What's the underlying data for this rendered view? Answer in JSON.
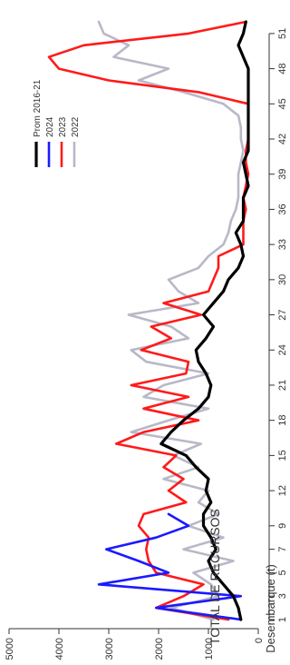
{
  "chart_data": {
    "type": "line",
    "title": "TOTAL DE RECURSOS",
    "xlabel": "",
    "ylabel": "Desembarque (t)",
    "rotation": "chart rotated 90° counter-clockwise",
    "ylim": [
      0,
      5000
    ],
    "yticks": [
      0,
      1000,
      2000,
      3000,
      4000,
      5000
    ],
    "xlim": [
      1,
      52
    ],
    "xticks": [
      1,
      3,
      5,
      7,
      9,
      12,
      15,
      18,
      21,
      24,
      27,
      30,
      33,
      36,
      39,
      42,
      45,
      48,
      51
    ],
    "legend_position": "top-right",
    "grid": false,
    "series": [
      {
        "name": "Prom 2016-21",
        "color": "#000000",
        "x": [
          1,
          2,
          3,
          4,
          5,
          6,
          7,
          8,
          9,
          10,
          11,
          12,
          13,
          14,
          15,
          16,
          17,
          18,
          19,
          20,
          21,
          22,
          23,
          24,
          25,
          26,
          27,
          28,
          29,
          30,
          31,
          32,
          33,
          34,
          35,
          36,
          37,
          38,
          39,
          40,
          41,
          42,
          43,
          44,
          45,
          46,
          47,
          48,
          49,
          50,
          51,
          52
        ],
        "values": [
          350,
          400,
          500,
          700,
          900,
          1000,
          850,
          950,
          1100,
          1100,
          950,
          1050,
          1000,
          1250,
          1450,
          1950,
          1750,
          1500,
          1200,
          1000,
          950,
          1050,
          1200,
          1250,
          1050,
          900,
          1100,
          900,
          700,
          600,
          400,
          300,
          350,
          450,
          300,
          300,
          300,
          200,
          250,
          300,
          200,
          200,
          200,
          200,
          200,
          200,
          200,
          200,
          300,
          400,
          300,
          250
        ]
      },
      {
        "name": "2024",
        "color": "#1a1aff",
        "x": [
          1,
          2,
          3,
          4,
          5,
          6,
          7,
          8,
          9,
          10
        ],
        "values": [
          350,
          2050,
          350,
          3200,
          1800,
          2400,
          3050,
          2050,
          1400,
          1800
        ]
      },
      {
        "name": "2023",
        "color": "#ff1a1a",
        "x": [
          1,
          2,
          3,
          4,
          5,
          6,
          7,
          8,
          9,
          10,
          11,
          12,
          13,
          14,
          15,
          16,
          17,
          18,
          19,
          20,
          21,
          22,
          23,
          24,
          25,
          26,
          27,
          28,
          29,
          30,
          31,
          32,
          33,
          34,
          35,
          36,
          37,
          38,
          39,
          40,
          41,
          42,
          43,
          44,
          45,
          46,
          47,
          48,
          49,
          50,
          51,
          52
        ],
        "values": [
          600,
          2050,
          1500,
          1100,
          2050,
          2200,
          2250,
          2200,
          2400,
          2300,
          1450,
          1800,
          1500,
          1900,
          1650,
          2850,
          2300,
          1200,
          2300,
          1400,
          2550,
          1450,
          1400,
          2350,
          1750,
          2150,
          1150,
          1900,
          1000,
          900,
          800,
          800,
          300,
          300,
          300,
          250,
          300,
          250,
          200,
          250,
          250,
          200,
          200,
          200,
          200,
          1200,
          3000,
          4000,
          4200,
          3500,
          1400,
          250
        ]
      },
      {
        "name": "2022",
        "color": "#b8b8c8",
        "x": [
          1,
          2,
          3,
          4,
          5,
          6,
          7,
          8,
          9,
          10,
          11,
          12,
          13,
          14,
          15,
          16,
          17,
          18,
          19,
          20,
          21,
          22,
          23,
          24,
          25,
          26,
          27,
          28,
          29,
          30,
          31,
          32,
          33,
          34,
          35,
          36,
          37,
          38,
          39,
          40,
          41,
          42,
          43,
          44,
          45,
          46,
          47,
          48,
          49,
          50,
          51,
          52
        ],
        "values": [
          900,
          1750,
          800,
          950,
          1300,
          500,
          1500,
          700,
          1400,
          800,
          1200,
          1000,
          1900,
          1200,
          1700,
          1150,
          2550,
          1800,
          1000,
          2300,
          1900,
          1000,
          2250,
          2550,
          1400,
          1750,
          2600,
          1200,
          1600,
          1800,
          1200,
          1000,
          700,
          600,
          550,
          450,
          400,
          400,
          400,
          350,
          300,
          350,
          350,
          400,
          700,
          1500,
          2400,
          1800,
          2900,
          2600,
          3100,
          3200
        ]
      }
    ]
  }
}
